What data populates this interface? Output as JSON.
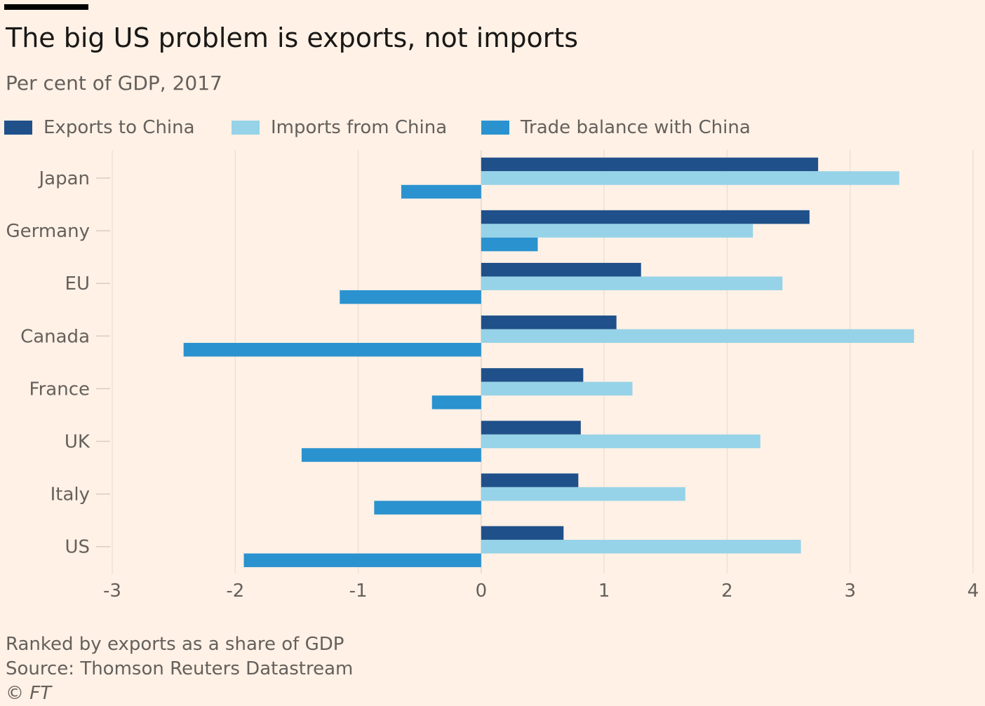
{
  "header": {
    "title": "The big US problem is exports, not imports",
    "subtitle": "Per cent of GDP, 2017"
  },
  "colors": {
    "background": "#fff1e5",
    "exports": "#1f5089",
    "imports": "#96d2e8",
    "balance": "#2a93cf",
    "grid": "#e9ddd2",
    "tick_text": "#66605c"
  },
  "chart_data": {
    "type": "bar",
    "orientation": "horizontal",
    "categories": [
      "Japan",
      "Germany",
      "EU",
      "Canada",
      "France",
      "UK",
      "Italy",
      "US"
    ],
    "series": [
      {
        "name": "Exports to China",
        "color": "#1f5089",
        "values": [
          2.74,
          2.67,
          1.3,
          1.1,
          0.83,
          0.81,
          0.79,
          0.67
        ]
      },
      {
        "name": "Imports from China",
        "color": "#96d2e8",
        "values": [
          3.4,
          2.21,
          2.45,
          3.52,
          1.23,
          2.27,
          1.66,
          2.6
        ]
      },
      {
        "name": "Trade balance with China",
        "color": "#2a93cf",
        "values": [
          -0.65,
          0.46,
          -1.15,
          -2.42,
          -0.4,
          -1.46,
          -0.87,
          -1.93
        ]
      }
    ],
    "xlim": [
      -3,
      4
    ],
    "xticks": [
      -3,
      -2,
      -1,
      0,
      1,
      2,
      3,
      4
    ],
    "xtick_labels": [
      "-3",
      "-2",
      "-1",
      "0",
      "1",
      "2",
      "3",
      "4"
    ],
    "xlabel": "",
    "ylabel": "",
    "grid": "vertical",
    "legend_position": "top-left"
  },
  "footer": {
    "note": "Ranked by exports as a share of GDP",
    "source": "Source: Thomson Reuters Datastream",
    "copyright": "© FT"
  }
}
